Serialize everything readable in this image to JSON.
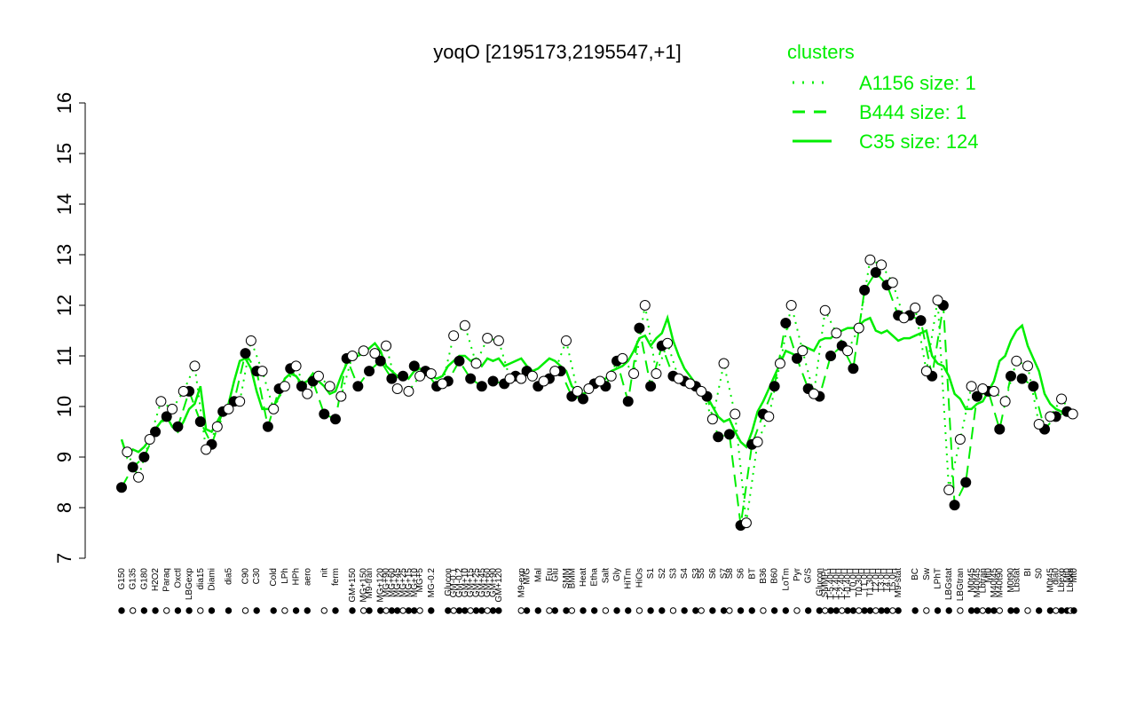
{
  "chart_data": {
    "type": "line",
    "title": "yoqO [2195173,2195547,+1]",
    "xlabel": "",
    "ylabel": "",
    "ylim": [
      7,
      16
    ],
    "yticks": [
      7,
      8,
      9,
      10,
      11,
      12,
      13,
      14,
      15,
      16
    ],
    "grid": false,
    "legend": {
      "title": "clusters",
      "placement": "top-right",
      "color": "#00ee00",
      "entries": [
        {
          "label": "A1156 size: 1",
          "style": "dotted"
        },
        {
          "label": "B444 size: 1",
          "style": "dashed"
        },
        {
          "label": "C35 size: 124",
          "style": "solid"
        }
      ]
    },
    "x_tick_labels": [
      {
        "label": "G150",
        "x": 1
      },
      {
        "label": "G135",
        "x": 3
      },
      {
        "label": "G180",
        "x": 5
      },
      {
        "label": "H2O2",
        "x": 7
      },
      {
        "label": "Paraq",
        "x": 9
      },
      {
        "label": "Oxctl",
        "x": 11
      },
      {
        "label": "LBGexp",
        "x": 13
      },
      {
        "label": "dia15",
        "x": 15
      },
      {
        "label": "Diami",
        "x": 17
      },
      {
        "label": "dia5",
        "x": 20
      },
      {
        "label": "C90",
        "x": 23
      },
      {
        "label": "C30",
        "x": 25
      },
      {
        "label": "Cold",
        "x": 28
      },
      {
        "label": "LPh",
        "x": 30
      },
      {
        "label": "HPh",
        "x": 32
      },
      {
        "label": "aero",
        "x": 34
      },
      {
        "label": "nit",
        "x": 37
      },
      {
        "label": "ferm",
        "x": 39
      },
      {
        "label": "GM+150",
        "x": 42
      },
      {
        "label": "MG+150",
        "x": 44
      },
      {
        "label": "M9-tran",
        "x": 45
      },
      {
        "label": "MG+120",
        "x": 47
      },
      {
        "label": "MG+90",
        "x": 48
      },
      {
        "label": "MG+60",
        "x": 49
      },
      {
        "label": "MG+45",
        "x": 50
      },
      {
        "label": "MG+25",
        "x": 51
      },
      {
        "label": "MG+15",
        "x": 52
      },
      {
        "label": "MG+10",
        "x": 53
      },
      {
        "label": "MG+5",
        "x": 54
      },
      {
        "label": "MG-0.2",
        "x": 56
      },
      {
        "label": "Glucon",
        "x": 59
      },
      {
        "label": "GM-0.1",
        "x": 60
      },
      {
        "label": "GM-0.2",
        "x": 61
      },
      {
        "label": "GM+10",
        "x": 62
      },
      {
        "label": "GM+15",
        "x": 63
      },
      {
        "label": "GM+25",
        "x": 64
      },
      {
        "label": "GM+45",
        "x": 65
      },
      {
        "label": "GM+60",
        "x": 66
      },
      {
        "label": "GM+90",
        "x": 67
      },
      {
        "label": "GM+120",
        "x": 68
      },
      {
        "label": "M9-exp",
        "x": 72
      },
      {
        "label": "M/G",
        "x": 73
      },
      {
        "label": "Mal",
        "x": 75
      },
      {
        "label": "Fru",
        "x": 77
      },
      {
        "label": "Glu",
        "x": 78
      },
      {
        "label": "SMM",
        "x": 80
      },
      {
        "label": "BMM",
        "x": 81
      },
      {
        "label": "Heat",
        "x": 83
      },
      {
        "label": "Etha",
        "x": 85
      },
      {
        "label": "Salt",
        "x": 87
      },
      {
        "label": "Gly",
        "x": 89
      },
      {
        "label": "HiTm",
        "x": 91
      },
      {
        "label": "HiOs",
        "x": 93
      },
      {
        "label": "S1",
        "x": 95
      },
      {
        "label": "S2",
        "x": 97
      },
      {
        "label": "S3",
        "x": 99
      },
      {
        "label": "S4",
        "x": 101
      },
      {
        "label": "S3",
        "x": 103
      },
      {
        "label": "S5",
        "x": 104
      },
      {
        "label": "S6",
        "x": 106
      },
      {
        "label": "S7",
        "x": 108
      },
      {
        "label": "S8",
        "x": 109
      },
      {
        "label": "S6",
        "x": 111
      },
      {
        "label": "BT",
        "x": 113
      },
      {
        "label": "B36",
        "x": 115
      },
      {
        "label": "B60",
        "x": 117
      },
      {
        "label": "LoTm",
        "x": 119
      },
      {
        "label": "Pyr",
        "x": 121
      },
      {
        "label": "G/S",
        "x": 123
      },
      {
        "label": "Glucon",
        "x": 125
      },
      {
        "label": "SMMPr",
        "x": 126
      },
      {
        "label": "T-5.40H",
        "x": 127
      },
      {
        "label": "T-4.40H",
        "x": 128
      },
      {
        "label": "T-2.40H",
        "x": 129
      },
      {
        "label": "T-0.40H",
        "x": 130
      },
      {
        "label": "T0.0H",
        "x": 131
      },
      {
        "label": "T0.30H",
        "x": 132
      },
      {
        "label": "T1.0H",
        "x": 133
      },
      {
        "label": "T1.30H",
        "x": 134
      },
      {
        "label": "T2.0H",
        "x": 135
      },
      {
        "label": "T3.0H",
        "x": 136
      },
      {
        "label": "T4.0H",
        "x": 137
      },
      {
        "label": "T5.0H",
        "x": 138
      },
      {
        "label": "M9-stat",
        "x": 139
      },
      {
        "label": "BC",
        "x": 142
      },
      {
        "label": "Sw",
        "x": 144
      },
      {
        "label": "LPhT",
        "x": 146
      },
      {
        "label": "LBGstat",
        "x": 148
      },
      {
        "label": "LBGtran",
        "x": 150
      },
      {
        "label": "M0t45",
        "x": 152
      },
      {
        "label": "M40t45",
        "x": 153
      },
      {
        "label": "Lbtran",
        "x": 154
      },
      {
        "label": "Mt0",
        "x": 155
      },
      {
        "label": "M40t45",
        "x": 156
      },
      {
        "label": "M40t90",
        "x": 157
      },
      {
        "label": "M0t90",
        "x": 159
      },
      {
        "label": "Lbstat",
        "x": 160
      },
      {
        "label": "BI",
        "x": 162
      },
      {
        "label": "S0",
        "x": 164
      },
      {
        "label": "M0t45",
        "x": 166
      },
      {
        "label": "dia0",
        "x": 167
      },
      {
        "label": "Lbexp",
        "x": 168
      },
      {
        "label": "Mt0",
        "x": 169
      },
      {
        "label": "Lbexp",
        "x": 169.6
      },
      {
        "label": "Mt0",
        "x": 170.2
      }
    ],
    "series": [
      {
        "name": "C35 size: 124",
        "style": "solid",
        "color": "#00ee00",
        "x": [
          1,
          2,
          3,
          4,
          5,
          6,
          7,
          8,
          9,
          10,
          11,
          12,
          13,
          14,
          15,
          16,
          17,
          18,
          19,
          20,
          21,
          22,
          23,
          24,
          25,
          26,
          27,
          28,
          29,
          30,
          31,
          32,
          33,
          34,
          35,
          36,
          37,
          38,
          39,
          40,
          41,
          42,
          43,
          44,
          45,
          46,
          47,
          48,
          49,
          50,
          51,
          52,
          53,
          54,
          55,
          56,
          57,
          58,
          59,
          60,
          61,
          62,
          63,
          64,
          65,
          66,
          67,
          68,
          69,
          70,
          71,
          72,
          73,
          74,
          75,
          76,
          77,
          78,
          79,
          80,
          81,
          82,
          83,
          84,
          85,
          86,
          87,
          88,
          89,
          90,
          91,
          92,
          93,
          94,
          95,
          96,
          97,
          98,
          99,
          100,
          101,
          102,
          103,
          104,
          105,
          106,
          107,
          108,
          109,
          110,
          111,
          112,
          113,
          114,
          115,
          116,
          117,
          118,
          119,
          120,
          121,
          122,
          123,
          124,
          125,
          126,
          127,
          128,
          129,
          130,
          131,
          132,
          133,
          134,
          135,
          136,
          137,
          138,
          139,
          140,
          141,
          142,
          143,
          144,
          145,
          146,
          147,
          148,
          149,
          150,
          151,
          152,
          153,
          154,
          155,
          156,
          157,
          158,
          159,
          160,
          161,
          162,
          163,
          164,
          165,
          166,
          167,
          168,
          169,
          170
        ],
        "y": [
          9.35,
          9.0,
          9.15,
          9.1,
          9.2,
          9.35,
          9.55,
          9.7,
          9.8,
          9.6,
          9.5,
          9.7,
          9.95,
          10.05,
          10.4,
          9.55,
          9.5,
          9.7,
          9.9,
          10.05,
          10.5,
          10.9,
          10.95,
          10.75,
          10.3,
          9.95,
          9.95,
          10.0,
          10.2,
          10.55,
          10.65,
          10.6,
          10.45,
          10.5,
          10.65,
          10.5,
          10.4,
          10.25,
          10.3,
          10.6,
          10.85,
          10.95,
          11.0,
          11.05,
          11.15,
          11.25,
          11.1,
          10.8,
          10.7,
          10.6,
          10.65,
          10.55,
          10.7,
          10.75,
          10.7,
          10.6,
          10.55,
          10.6,
          10.8,
          10.9,
          11.0,
          11.0,
          10.9,
          10.95,
          10.8,
          10.95,
          10.9,
          10.95,
          10.8,
          10.85,
          10.9,
          10.95,
          10.8,
          10.7,
          10.75,
          10.85,
          10.95,
          10.9,
          10.8,
          10.7,
          10.4,
          10.3,
          10.25,
          10.3,
          10.4,
          10.45,
          10.55,
          10.7,
          10.75,
          10.8,
          10.9,
          11.1,
          11.35,
          11.4,
          11.2,
          11.35,
          11.45,
          11.75,
          11.3,
          11.0,
          10.75,
          10.6,
          10.45,
          10.35,
          10.2,
          10.0,
          9.8,
          9.7,
          9.75,
          9.5,
          9.3,
          9.2,
          9.5,
          9.9,
          10.1,
          10.35,
          10.6,
          10.85,
          11.1,
          11.05,
          11.0,
          11.2,
          11.15,
          11.1,
          11.3,
          11.35,
          11.35,
          11.45,
          11.5,
          11.55,
          11.55,
          11.6,
          11.7,
          11.75,
          11.5,
          11.45,
          11.5,
          11.4,
          11.3,
          11.35,
          11.35,
          11.4,
          11.45,
          11.5,
          11.0,
          10.85,
          10.8,
          10.6,
          10.25,
          10.15,
          9.95,
          9.95,
          10.05,
          10.1,
          10.3,
          10.5,
          10.9,
          11.0,
          11.3,
          11.5,
          11.6,
          11.2,
          10.95,
          10.7,
          10.25,
          10.05,
          9.95,
          9.9,
          9.9,
          9.85
        ]
      },
      {
        "name": "B444 size: 1",
        "style": "dashed",
        "color": "#00ee00",
        "x": [
          1,
          3,
          5,
          7,
          9,
          11,
          13,
          15,
          17,
          19,
          21,
          23,
          25,
          27,
          29,
          31,
          33,
          35,
          37,
          39,
          41,
          43,
          45,
          47,
          49,
          51,
          53,
          55,
          57,
          59,
          61,
          63,
          65,
          67,
          69,
          71,
          73,
          75,
          77,
          79,
          81,
          83,
          85,
          87,
          89,
          91,
          93,
          95,
          97,
          99,
          101,
          103,
          105,
          107,
          109,
          111,
          113,
          115,
          117,
          119,
          121,
          123,
          125,
          127,
          129,
          131,
          133,
          135,
          137,
          139,
          141,
          143,
          145,
          147,
          149,
          151,
          153,
          155,
          157,
          159,
          161,
          163,
          165,
          167,
          169
        ],
        "y": [
          8.4,
          8.8,
          9.0,
          9.5,
          9.8,
          9.6,
          10.3,
          9.7,
          9.25,
          9.9,
          10.1,
          11.05,
          10.7,
          9.6,
          10.35,
          10.75,
          10.4,
          10.5,
          9.85,
          9.75,
          10.95,
          10.4,
          10.7,
          10.9,
          10.55,
          10.6,
          10.8,
          10.7,
          10.4,
          10.5,
          10.9,
          10.55,
          10.4,
          10.5,
          10.45,
          10.6,
          10.7,
          10.4,
          10.55,
          10.7,
          10.2,
          10.15,
          10.45,
          10.4,
          10.9,
          10.1,
          11.55,
          10.4,
          11.2,
          10.6,
          10.5,
          10.4,
          10.2,
          9.4,
          9.45,
          7.65,
          9.25,
          9.85,
          10.4,
          11.65,
          10.95,
          10.35,
          10.2,
          11.0,
          11.2,
          10.75,
          12.3,
          12.65,
          12.4,
          11.8,
          11.8,
          11.7,
          10.6,
          12.0,
          8.05,
          8.5,
          10.2,
          10.3,
          9.55,
          10.6,
          10.55,
          10.4,
          9.55,
          9.8,
          9.9
        ]
      },
      {
        "name": "A1156 size: 1",
        "style": "dotted",
        "color": "#00ee00",
        "x": [
          2,
          4,
          6,
          8,
          10,
          12,
          14,
          16,
          18,
          20,
          22,
          24,
          26,
          28,
          30,
          32,
          34,
          36,
          38,
          40,
          42,
          44,
          46,
          48,
          50,
          52,
          54,
          56,
          58,
          60,
          62,
          64,
          66,
          68,
          70,
          72,
          74,
          76,
          78,
          80,
          82,
          84,
          86,
          88,
          90,
          92,
          94,
          96,
          98,
          100,
          102,
          104,
          106,
          108,
          110,
          112,
          114,
          116,
          118,
          120,
          122,
          124,
          126,
          128,
          130,
          132,
          134,
          136,
          138,
          140,
          142,
          144,
          146,
          148,
          150,
          152,
          154,
          156,
          158,
          160,
          162,
          164,
          166,
          168,
          170
        ],
        "y": [
          9.1,
          8.6,
          9.35,
          10.1,
          9.95,
          10.3,
          10.8,
          9.15,
          9.6,
          9.95,
          10.1,
          11.3,
          10.7,
          9.95,
          10.4,
          10.8,
          10.25,
          10.6,
          10.4,
          10.2,
          11.0,
          11.1,
          11.05,
          11.2,
          10.35,
          10.3,
          10.6,
          10.65,
          10.45,
          11.4,
          11.6,
          10.85,
          11.35,
          11.3,
          10.55,
          10.55,
          10.6,
          10.5,
          10.7,
          11.3,
          10.3,
          10.35,
          10.5,
          10.6,
          10.95,
          10.65,
          12.0,
          10.65,
          11.25,
          10.55,
          10.45,
          10.3,
          9.75,
          10.85,
          9.85,
          7.7,
          9.3,
          9.8,
          10.85,
          12.0,
          11.1,
          10.25,
          11.9,
          11.45,
          11.1,
          11.55,
          12.9,
          12.8,
          12.45,
          11.75,
          11.95,
          10.7,
          12.1,
          8.35,
          9.35,
          10.4,
          10.35,
          10.3,
          10.1,
          10.9,
          10.8,
          9.65,
          9.8,
          10.15,
          9.85
        ]
      }
    ]
  }
}
